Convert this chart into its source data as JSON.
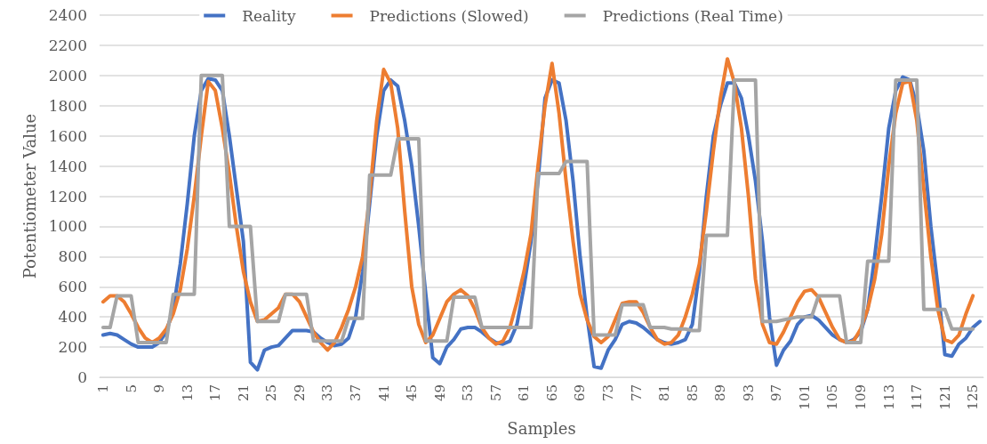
{
  "chart_data": {
    "type": "line",
    "xlabel": "Samples",
    "ylabel": "Potentiometer Value",
    "categories": [
      "1",
      null,
      null,
      null,
      "5",
      null,
      null,
      null,
      "9",
      null,
      null,
      null,
      "13",
      null,
      null,
      null,
      "17",
      null,
      null,
      null,
      "21",
      null,
      null,
      null,
      "25",
      null,
      null,
      null,
      "29",
      null,
      null,
      null,
      "33",
      null,
      null,
      null,
      "37",
      null,
      null,
      null,
      "41",
      null,
      null,
      null,
      "45",
      null,
      null,
      null,
      "49",
      null,
      null,
      null,
      "53",
      null,
      null,
      null,
      "57",
      null,
      null,
      null,
      "61",
      null,
      null,
      null,
      "65",
      null,
      null,
      null,
      "69",
      null,
      null,
      null,
      "73",
      null,
      null,
      null,
      "77",
      null,
      null,
      null,
      "81",
      null,
      null,
      null,
      "85",
      null,
      null,
      null,
      "89",
      null,
      null,
      null,
      "93",
      null,
      null,
      null,
      "97",
      null,
      null,
      null,
      "101",
      null,
      null,
      null,
      "105",
      null,
      null,
      null,
      "109",
      null,
      null,
      null,
      "113",
      null,
      null,
      null,
      "117",
      null,
      null,
      null,
      "121",
      null,
      null,
      null,
      "125",
      null
    ],
    "series": [
      {
        "name": "Reality",
        "color": "#4472c4",
        "values": [
          280,
          290,
          280,
          250,
          220,
          200,
          200,
          200,
          230,
          300,
          450,
          750,
          1150,
          1600,
          1900,
          1980,
          1970,
          1900,
          1600,
          1250,
          900,
          100,
          50,
          180,
          200,
          210,
          260,
          310,
          310,
          310,
          300,
          260,
          230,
          210,
          220,
          260,
          400,
          700,
          1150,
          1600,
          1900,
          1970,
          1930,
          1700,
          1400,
          1000,
          550,
          130,
          90,
          200,
          250,
          320,
          330,
          330,
          300,
          260,
          230,
          220,
          240,
          350,
          600,
          900,
          1300,
          1850,
          1970,
          1950,
          1700,
          1300,
          800,
          400,
          70,
          60,
          180,
          250,
          350,
          370,
          360,
          330,
          290,
          250,
          230,
          220,
          230,
          250,
          350,
          700,
          1200,
          1600,
          1800,
          1950,
          1950,
          1850,
          1600,
          1300,
          900,
          400,
          80,
          180,
          240,
          350,
          400,
          410,
          380,
          330,
          280,
          250,
          230,
          250,
          300,
          450,
          800,
          1200,
          1650,
          1900,
          1990,
          1970,
          1800,
          1500,
          1000,
          600,
          150,
          140,
          220,
          260,
          330,
          370
        ]
      },
      {
        "name": "Predictions (Slowed)",
        "color": "#ed7d31",
        "values": [
          500,
          540,
          540,
          500,
          420,
          330,
          260,
          230,
          260,
          320,
          420,
          580,
          850,
          1200,
          1600,
          1960,
          1900,
          1650,
          1350,
          1000,
          700,
          500,
          370,
          380,
          420,
          460,
          550,
          550,
          500,
          400,
          300,
          230,
          180,
          230,
          330,
          450,
          600,
          800,
          1200,
          1700,
          2040,
          1950,
          1650,
          1100,
          600,
          350,
          230,
          280,
          390,
          500,
          550,
          580,
          540,
          450,
          330,
          260,
          220,
          240,
          330,
          500,
          700,
          950,
          1400,
          1800,
          2080,
          1750,
          1300,
          900,
          550,
          380,
          270,
          230,
          270,
          380,
          490,
          500,
          500,
          430,
          330,
          250,
          220,
          230,
          280,
          400,
          550,
          750,
          1100,
          1500,
          1850,
          2110,
          1950,
          1650,
          1200,
          650,
          350,
          230,
          220,
          300,
          400,
          500,
          570,
          580,
          530,
          430,
          330,
          250,
          230,
          240,
          320,
          450,
          650,
          950,
          1400,
          1750,
          1950,
          1960,
          1700,
          1250,
          800,
          450,
          250,
          230,
          280,
          420,
          540,
          null
        ]
      },
      {
        "name": "Predictions (Real Time)",
        "color": "#a5a5a5",
        "values": [
          330,
          330,
          540,
          540,
          540,
          230,
          230,
          230,
          230,
          230,
          550,
          550,
          550,
          550,
          2000,
          2000,
          2000,
          2000,
          1000,
          1000,
          1000,
          1000,
          370,
          370,
          370,
          370,
          550,
          550,
          550,
          550,
          240,
          240,
          240,
          240,
          240,
          390,
          390,
          390,
          1340,
          1340,
          1340,
          1340,
          1580,
          1580,
          1580,
          1580,
          240,
          240,
          240,
          240,
          530,
          530,
          530,
          530,
          330,
          330,
          330,
          330,
          330,
          330,
          330,
          330,
          1350,
          1350,
          1350,
          1350,
          1430,
          1430,
          1430,
          1430,
          280,
          280,
          280,
          280,
          480,
          480,
          480,
          480,
          330,
          330,
          330,
          320,
          320,
          320,
          310,
          310,
          940,
          940,
          940,
          940,
          1970,
          1970,
          1970,
          1970,
          370,
          370,
          370,
          380,
          390,
          400,
          400,
          400,
          540,
          540,
          540,
          540,
          230,
          230,
          230,
          770,
          770,
          770,
          770,
          1970,
          1970,
          1970,
          1970,
          450,
          450,
          450,
          450,
          320,
          320,
          320,
          320,
          null
        ]
      }
    ],
    "ylim": [
      0,
      2400
    ],
    "yticks": [
      0,
      200,
      400,
      600,
      800,
      1000,
      1200,
      1400,
      1600,
      1800,
      2000,
      2200,
      2400
    ],
    "grid": "y",
    "legend": "top",
    "marker": "none",
    "line_style": "solid"
  }
}
